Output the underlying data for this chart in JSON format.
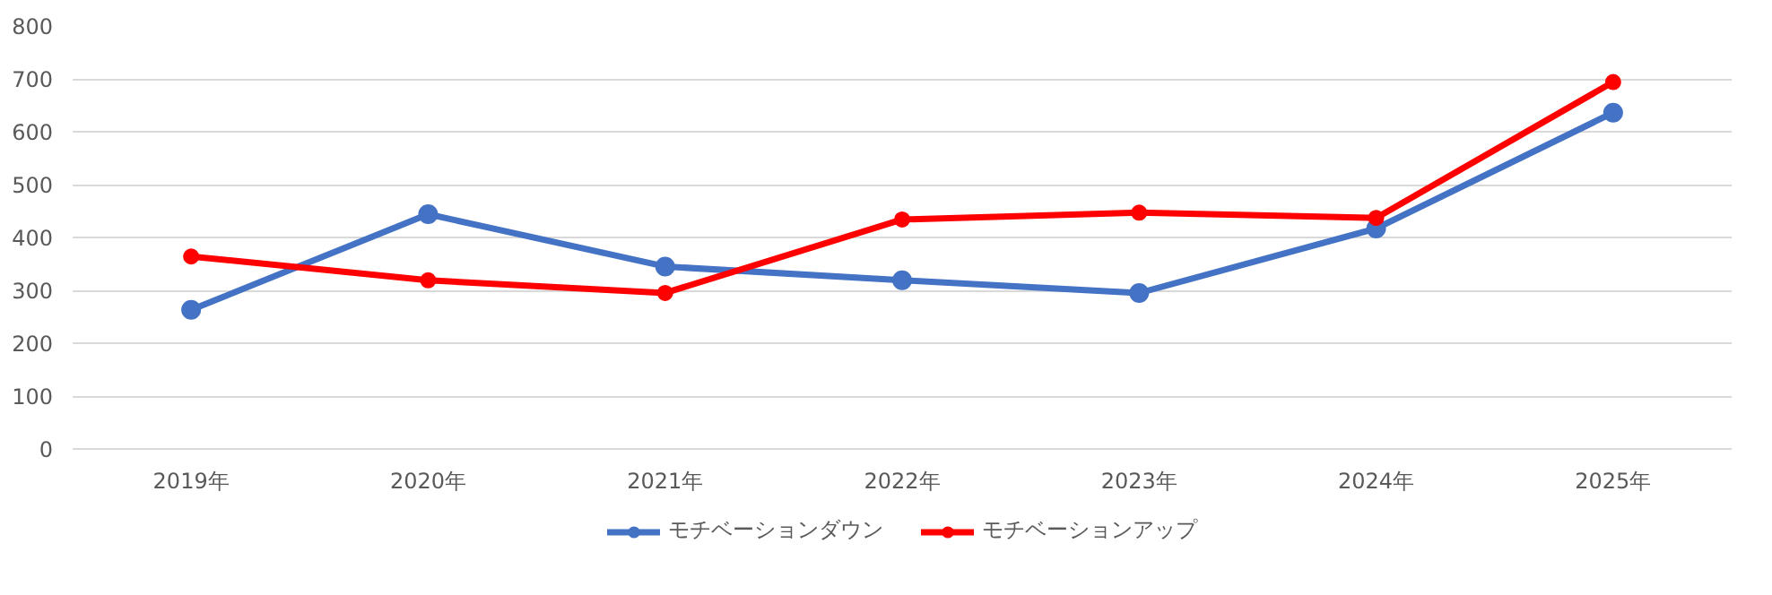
{
  "chart_data": {
    "type": "line",
    "categories": [
      "2019年",
      "2020年",
      "2021年",
      "2022年",
      "2023年",
      "2024年",
      "2025年"
    ],
    "series": [
      {
        "name": "モチベーションダウン",
        "color": "#4472c4",
        "values": [
          263,
          444,
          345,
          319,
          295,
          417,
          636
        ]
      },
      {
        "name": "モチベーションアップ",
        "color": "#ff0000",
        "values": [
          364,
          319,
          295,
          434,
          447,
          437,
          694
        ]
      }
    ],
    "ylim": [
      0,
      800
    ],
    "yticks": [
      0,
      100,
      200,
      300,
      400,
      500,
      600,
      700,
      800
    ],
    "grid": "y",
    "legend": "bottom",
    "marker": "circle",
    "line_style": "solid"
  }
}
